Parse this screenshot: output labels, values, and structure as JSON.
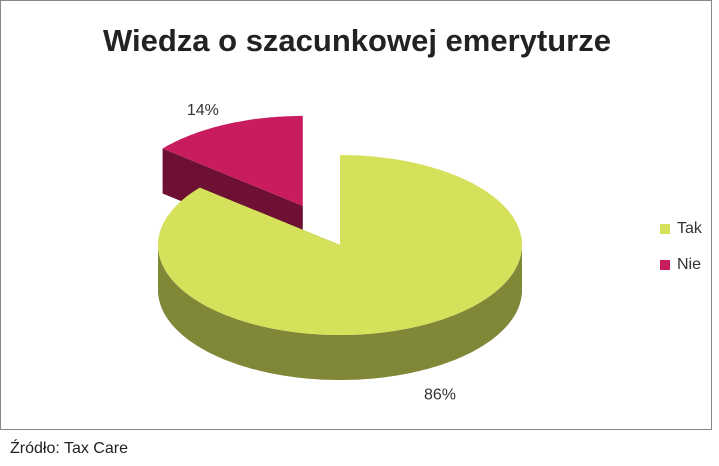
{
  "chart_data": {
    "type": "pie",
    "title": "Wiedza o szacunkowej emeryturze",
    "categories": [
      "Tak",
      "Nie"
    ],
    "values": [
      86,
      14
    ],
    "value_labels": [
      "86%",
      "14%"
    ],
    "colors": [
      "#d5e15b",
      "#c81c5f"
    ],
    "exploded": [
      false,
      true
    ],
    "legend": "right",
    "source": "Źródło: Tax Care"
  }
}
